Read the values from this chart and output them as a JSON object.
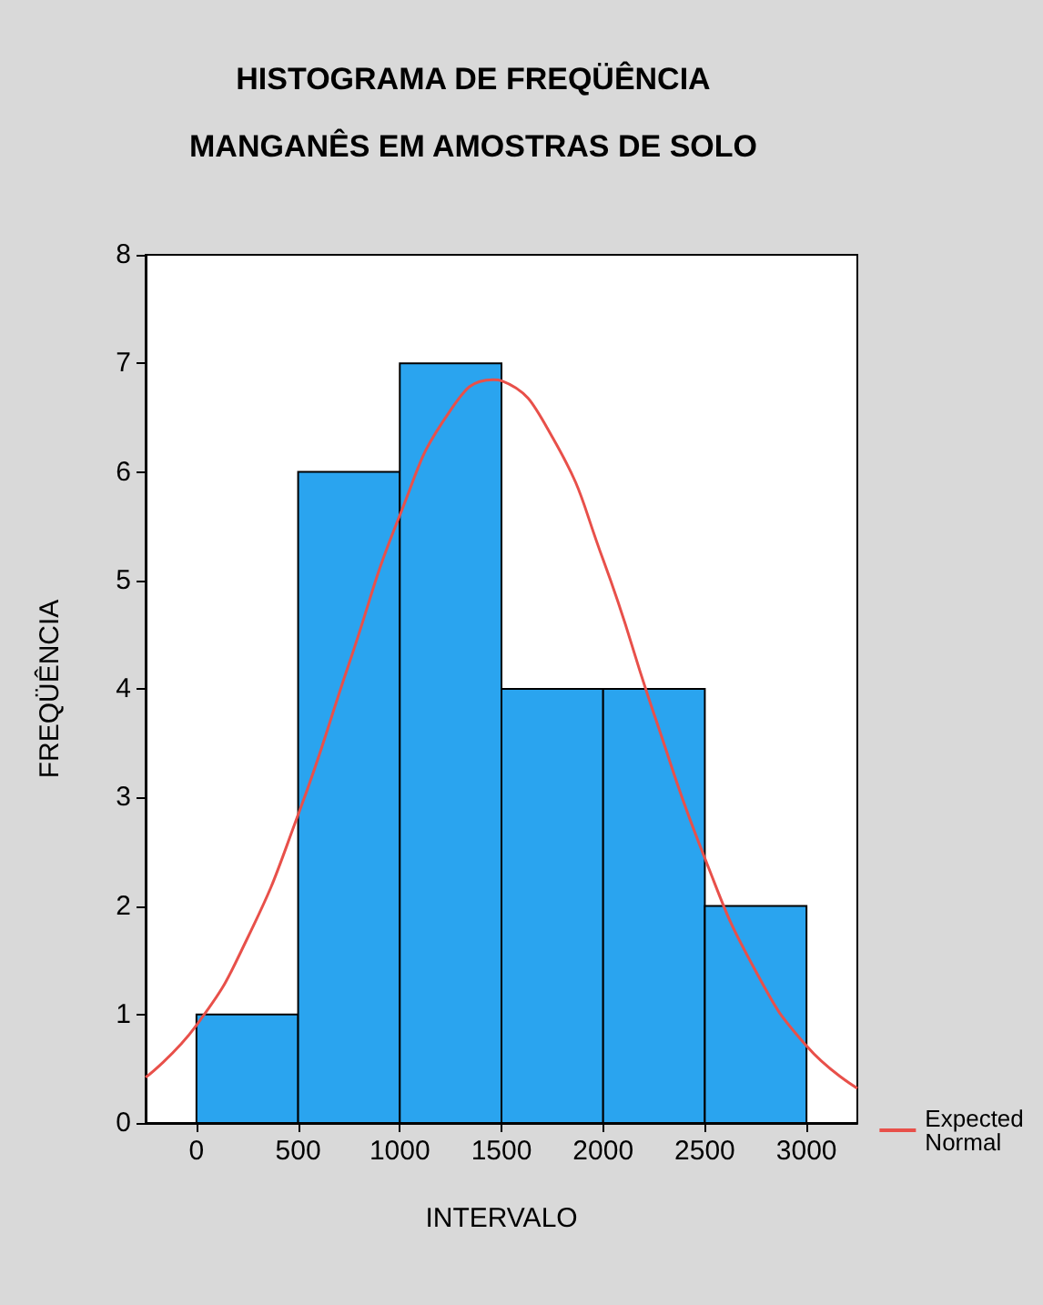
{
  "chart_data": {
    "type": "histogram",
    "title": "HISTOGRAMA DE FREQÜÊNCIA",
    "subtitle": "MANGANÊS EM AMOSTRAS DE SOLO",
    "xlabel": "INTERVALO",
    "ylabel": "FREQÜÊNCIA",
    "bins": [
      0,
      500,
      1000,
      1500,
      2000,
      2500,
      3000
    ],
    "values": [
      1,
      6,
      7,
      4,
      4,
      2
    ],
    "color": "#2aa4ef",
    "series": [
      {
        "type": "line",
        "name": "Expected Normal",
        "color": "#e8504a",
        "x": [
          -250,
          0,
          250,
          500,
          750,
          1000,
          1250,
          1460,
          1500,
          1750,
          2000,
          2250,
          2500,
          2750,
          3000,
          3250
        ],
        "values": [
          0.42,
          0.9,
          1.7,
          2.84,
          4.23,
          5.6,
          6.57,
          6.85,
          6.84,
          6.32,
          5.19,
          3.77,
          2.44,
          1.4,
          0.71,
          0.32
        ]
      }
    ],
    "xlim": [
      -250,
      3250
    ],
    "xticks": [
      0,
      500,
      1000,
      1500,
      2000,
      2500,
      3000
    ],
    "ylim": [
      0,
      8
    ],
    "yticks": [
      0,
      1,
      2,
      3,
      4,
      5,
      6,
      7,
      8
    ],
    "grid": false,
    "legend": "bottom right",
    "marker": "none"
  }
}
